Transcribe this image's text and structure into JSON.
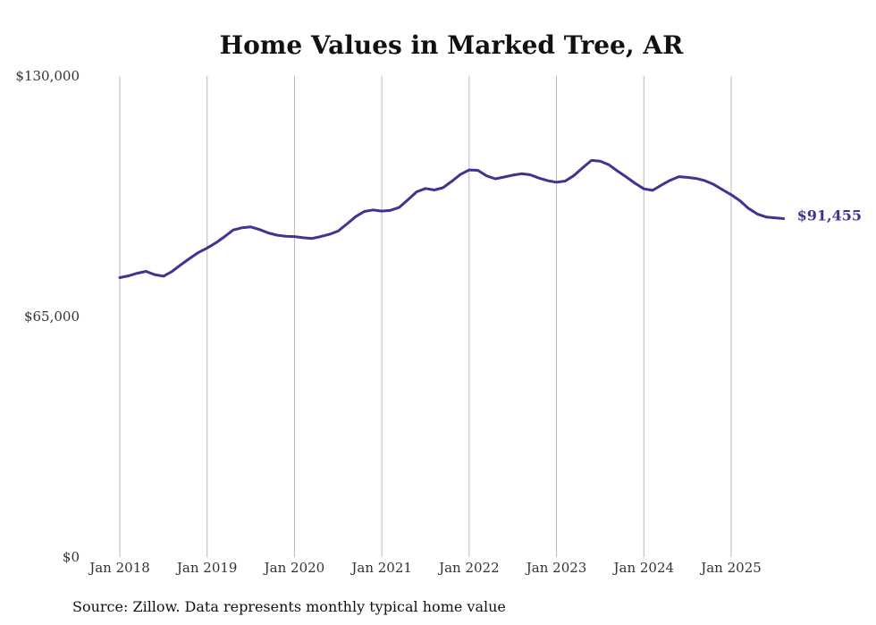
{
  "chart_data": {
    "type": "line",
    "title": "Home Values in Marked Tree, AR",
    "source": "Source: Zillow. Data represents monthly typical home value",
    "ylim": [
      0,
      130000
    ],
    "y_ticks": [
      {
        "value": 0,
        "label": "$0"
      },
      {
        "value": 65000,
        "label": "$65,000"
      },
      {
        "value": 130000,
        "label": "$130,000"
      }
    ],
    "x_ticks": [
      {
        "value": 2018.0,
        "label": "Jan 2018"
      },
      {
        "value": 2019.0,
        "label": "Jan 2019"
      },
      {
        "value": 2020.0,
        "label": "Jan 2020"
      },
      {
        "value": 2021.0,
        "label": "Jan 2021"
      },
      {
        "value": 2022.0,
        "label": "Jan 2022"
      },
      {
        "value": 2023.0,
        "label": "Jan 2023"
      },
      {
        "value": 2024.0,
        "label": "Jan 2024"
      },
      {
        "value": 2025.0,
        "label": "Jan 2025"
      }
    ],
    "xlim": [
      2018.0,
      2025.6
    ],
    "grid": "vertical",
    "line_color": "#3d3590",
    "end_label": "$91,455",
    "series": [
      {
        "x": [
          2018.0,
          2018.1,
          2018.2,
          2018.3,
          2018.4,
          2018.5,
          2018.6,
          2018.7,
          2018.8,
          2018.9,
          2019.0,
          2019.1,
          2019.2,
          2019.3,
          2019.4,
          2019.5,
          2019.6,
          2019.7,
          2019.8,
          2019.9,
          2020.0,
          2020.1,
          2020.2,
          2020.3,
          2020.4,
          2020.5,
          2020.6,
          2020.7,
          2020.8,
          2020.9,
          2021.0,
          2021.1,
          2021.2,
          2021.3,
          2021.4,
          2021.5,
          2021.6,
          2021.7,
          2021.8,
          2021.9,
          2022.0,
          2022.1,
          2022.2,
          2022.3,
          2022.4,
          2022.5,
          2022.6,
          2022.7,
          2022.8,
          2022.9,
          2023.0,
          2023.1,
          2023.2,
          2023.3,
          2023.4,
          2023.5,
          2023.6,
          2023.7,
          2023.8,
          2023.9,
          2024.0,
          2024.1,
          2024.2,
          2024.3,
          2024.4,
          2024.5,
          2024.6,
          2024.7,
          2024.8,
          2024.9,
          2025.0,
          2025.1,
          2025.2,
          2025.3,
          2025.4,
          2025.6
        ],
        "values": [
          75500,
          76000,
          76700,
          77200,
          76300,
          75900,
          77200,
          79000,
          80700,
          82300,
          83500,
          84900,
          86600,
          88400,
          89000,
          89200,
          88500,
          87600,
          87000,
          86700,
          86600,
          86300,
          86100,
          86600,
          87200,
          88100,
          90000,
          92000,
          93400,
          93800,
          93500,
          93700,
          94500,
          96600,
          98700,
          99600,
          99200,
          99800,
          101500,
          103400,
          104600,
          104500,
          103000,
          102200,
          102700,
          103200,
          103600,
          103300,
          102400,
          101700,
          101300,
          101600,
          103100,
          105200,
          107200,
          107000,
          106000,
          104300,
          102700,
          101000,
          99500,
          99100,
          100500,
          101800,
          102800,
          102600,
          102300,
          101700,
          100700,
          99300,
          97900,
          96300,
          94200,
          92700,
          91900,
          91455
        ]
      }
    ]
  }
}
